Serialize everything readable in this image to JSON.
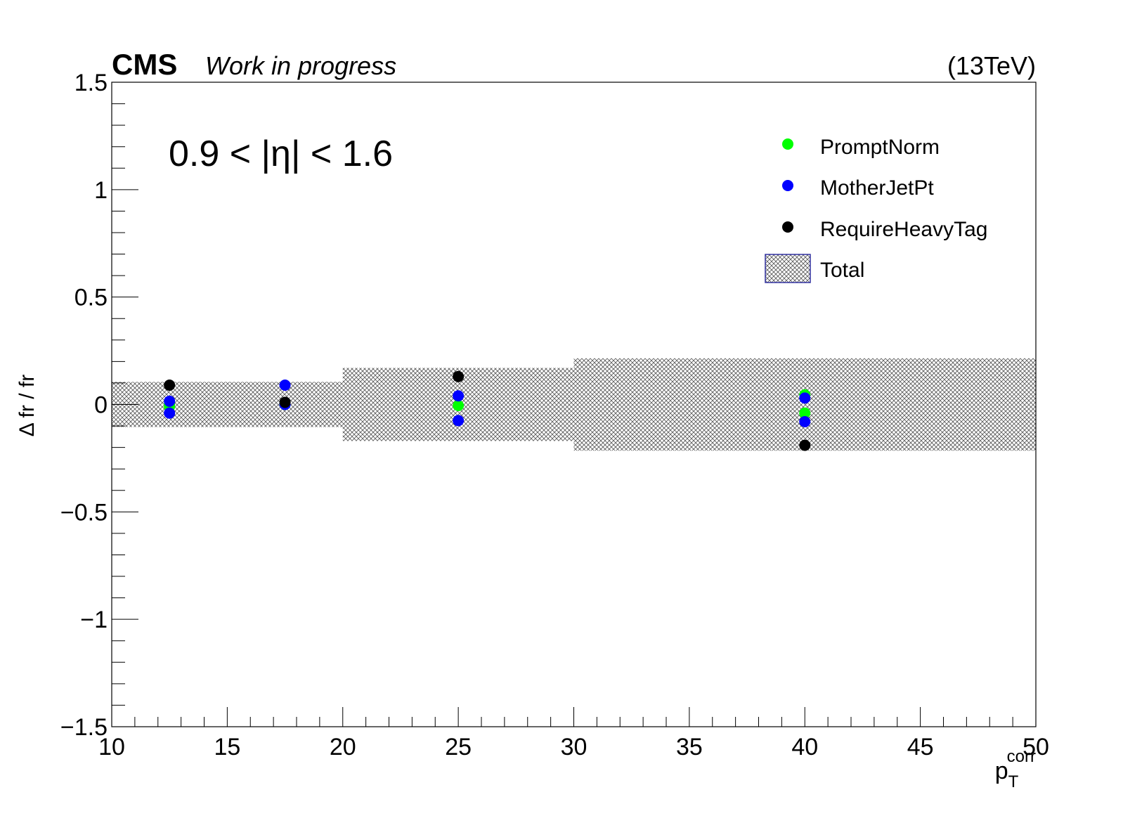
{
  "header": {
    "experiment": "CMS",
    "status": "Work in progress",
    "energy": "(13TeV)"
  },
  "annotation": "0.9 < |η| < 1.6",
  "chart_data": {
    "type": "scatter",
    "xlabel_base": "p",
    "xlabel_sub": "T",
    "xlabel_sup": "corr",
    "ylabel": "Δ fr / fr",
    "xlim": [
      10,
      50
    ],
    "ylim": [
      -1.5,
      1.5
    ],
    "x_ticks": [
      10,
      15,
      20,
      25,
      30,
      35,
      40,
      45,
      50
    ],
    "x_tick_labels": [
      "10",
      "15",
      "20",
      "25",
      "30",
      "35",
      "40",
      "45",
      "50"
    ],
    "y_ticks": [
      -1.5,
      -1,
      -0.5,
      0,
      0.5,
      1,
      1.5
    ],
    "y_tick_labels": [
      "−1.5",
      "−1",
      "−0.5",
      "0",
      "0.5",
      "1",
      "1.5"
    ],
    "total_band": [
      {
        "x_low": 10,
        "x_high": 20,
        "y_low": -0.105,
        "y_high": 0.105
      },
      {
        "x_low": 20,
        "x_high": 30,
        "y_low": -0.17,
        "y_high": 0.17
      },
      {
        "x_low": 30,
        "x_high": 50,
        "y_low": -0.215,
        "y_high": 0.215
      }
    ],
    "series": [
      {
        "name": "PromptNorm",
        "color": "#00ff00",
        "x": [
          12.5,
          12.5,
          17.5,
          25,
          40,
          40
        ],
        "y": [
          0.0,
          -0.01,
          0.0,
          -0.005,
          0.045,
          -0.04
        ]
      },
      {
        "name": "MotherJetPt",
        "color": "#0000ff",
        "x": [
          12.5,
          12.5,
          17.5,
          17.5,
          25,
          25,
          40,
          40
        ],
        "y": [
          0.015,
          -0.04,
          0.09,
          0.0,
          0.04,
          -0.075,
          0.03,
          -0.08
        ]
      },
      {
        "name": "RequireHeavyTag",
        "color": "#000000",
        "x": [
          12.5,
          17.5,
          25,
          40
        ],
        "y": [
          0.09,
          0.01,
          0.13,
          -0.19
        ]
      }
    ],
    "legend": {
      "position": "top-right",
      "entries": [
        "PromptNorm",
        "MotherJetPt",
        "RequireHeavyTag",
        "Total"
      ]
    },
    "grid": false
  }
}
